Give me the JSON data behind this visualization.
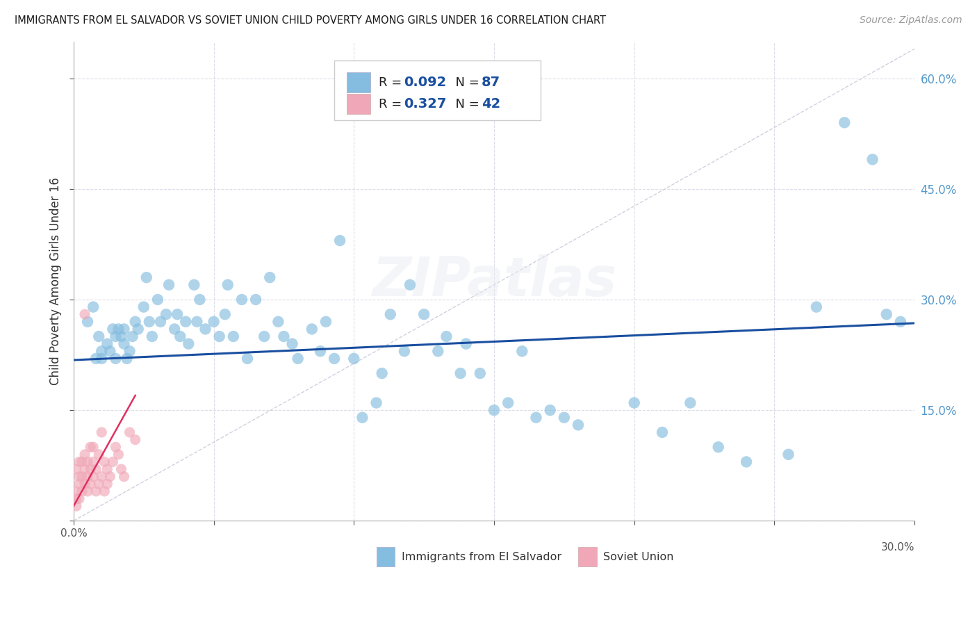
{
  "title": "IMMIGRANTS FROM EL SALVADOR VS SOVIET UNION CHILD POVERTY AMONG GIRLS UNDER 16 CORRELATION CHART",
  "source": "Source: ZipAtlas.com",
  "ylabel": "Child Poverty Among Girls Under 16",
  "legend_R1": "0.092",
  "legend_N1": "87",
  "legend_R2": "0.327",
  "legend_N2": "42",
  "xlim": [
    0,
    0.3
  ],
  "ylim": [
    0,
    0.65
  ],
  "yticks": [
    0.0,
    0.15,
    0.3,
    0.45,
    0.6
  ],
  "xticks": [
    0.0,
    0.05,
    0.1,
    0.15,
    0.2,
    0.25,
    0.3
  ],
  "xtick_labels": [
    "0.0%",
    "",
    "",
    "",
    "",
    "",
    "30.0%"
  ],
  "blue_scatter_x": [
    0.005,
    0.007,
    0.008,
    0.009,
    0.01,
    0.01,
    0.012,
    0.013,
    0.014,
    0.015,
    0.015,
    0.016,
    0.017,
    0.018,
    0.018,
    0.019,
    0.02,
    0.021,
    0.022,
    0.023,
    0.025,
    0.026,
    0.027,
    0.028,
    0.03,
    0.031,
    0.033,
    0.034,
    0.036,
    0.037,
    0.038,
    0.04,
    0.041,
    0.043,
    0.044,
    0.045,
    0.047,
    0.05,
    0.052,
    0.054,
    0.055,
    0.057,
    0.06,
    0.062,
    0.065,
    0.068,
    0.07,
    0.073,
    0.075,
    0.078,
    0.08,
    0.085,
    0.088,
    0.09,
    0.093,
    0.095,
    0.1,
    0.103,
    0.108,
    0.11,
    0.113,
    0.118,
    0.12,
    0.125,
    0.13,
    0.133,
    0.138,
    0.14,
    0.145,
    0.15,
    0.155,
    0.16,
    0.165,
    0.17,
    0.175,
    0.18,
    0.2,
    0.21,
    0.22,
    0.23,
    0.24,
    0.255,
    0.265,
    0.275,
    0.285,
    0.29,
    0.295
  ],
  "blue_scatter_y": [
    0.27,
    0.29,
    0.22,
    0.25,
    0.23,
    0.22,
    0.24,
    0.23,
    0.26,
    0.25,
    0.22,
    0.26,
    0.25,
    0.24,
    0.26,
    0.22,
    0.23,
    0.25,
    0.27,
    0.26,
    0.29,
    0.33,
    0.27,
    0.25,
    0.3,
    0.27,
    0.28,
    0.32,
    0.26,
    0.28,
    0.25,
    0.27,
    0.24,
    0.32,
    0.27,
    0.3,
    0.26,
    0.27,
    0.25,
    0.28,
    0.32,
    0.25,
    0.3,
    0.22,
    0.3,
    0.25,
    0.33,
    0.27,
    0.25,
    0.24,
    0.22,
    0.26,
    0.23,
    0.27,
    0.22,
    0.38,
    0.22,
    0.14,
    0.16,
    0.2,
    0.28,
    0.23,
    0.32,
    0.28,
    0.23,
    0.25,
    0.2,
    0.24,
    0.2,
    0.15,
    0.16,
    0.23,
    0.14,
    0.15,
    0.14,
    0.13,
    0.16,
    0.12,
    0.16,
    0.1,
    0.08,
    0.09,
    0.29,
    0.54,
    0.49,
    0.28,
    0.27
  ],
  "pink_scatter_x": [
    0.001,
    0.001,
    0.001,
    0.001,
    0.002,
    0.002,
    0.002,
    0.002,
    0.003,
    0.003,
    0.003,
    0.004,
    0.004,
    0.004,
    0.004,
    0.005,
    0.005,
    0.005,
    0.006,
    0.006,
    0.006,
    0.007,
    0.007,
    0.007,
    0.008,
    0.008,
    0.009,
    0.009,
    0.01,
    0.01,
    0.011,
    0.011,
    0.012,
    0.012,
    0.013,
    0.014,
    0.015,
    0.016,
    0.017,
    0.018,
    0.02,
    0.022
  ],
  "pink_scatter_y": [
    0.02,
    0.04,
    0.07,
    0.03,
    0.06,
    0.03,
    0.05,
    0.08,
    0.04,
    0.06,
    0.08,
    0.05,
    0.07,
    0.09,
    0.28,
    0.04,
    0.06,
    0.08,
    0.05,
    0.07,
    0.1,
    0.06,
    0.08,
    0.1,
    0.04,
    0.07,
    0.05,
    0.09,
    0.06,
    0.12,
    0.08,
    0.04,
    0.05,
    0.07,
    0.06,
    0.08,
    0.1,
    0.09,
    0.07,
    0.06,
    0.12,
    0.11
  ],
  "blue_line_x": [
    0.0,
    0.3
  ],
  "blue_line_y": [
    0.218,
    0.268
  ],
  "pink_line_x": [
    0.0,
    0.022
  ],
  "pink_line_y": [
    0.02,
    0.17
  ],
  "diag_line_x": [
    0.0,
    0.3
  ],
  "diag_line_y": [
    0.0,
    0.64
  ],
  "watermark": "ZIPatlas",
  "blue_color": "#85bde0",
  "pink_color": "#f0a8b8",
  "blue_line_color": "#1a4fa0",
  "pink_line_color": "#e03060",
  "diag_line_color": "#d0d0e0",
  "right_axis_color": "#5599cc",
  "legend_text_color": "#1a4fa0",
  "background_color": "#ffffff",
  "grid_color": "#dcdce8",
  "bottom_legend_blue": "#85bde0",
  "bottom_legend_pink": "#f0a8b8"
}
